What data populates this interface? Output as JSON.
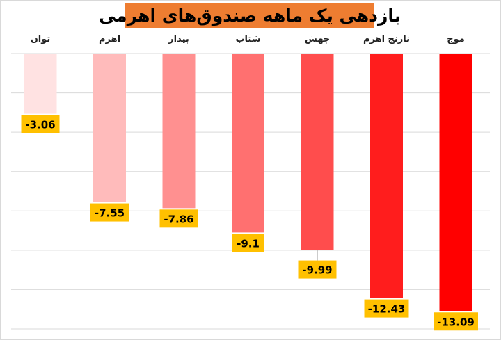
{
  "chart_data": {
    "type": "bar",
    "title": "بازدهی یک ماهه صندوق‌های اهرمی",
    "categories": [
      "موج",
      "نارنج اهرم",
      "جهش",
      "شتاب",
      "بیدار",
      "اهرم",
      "توان"
    ],
    "values": [
      -13.09,
      -12.43,
      -9.99,
      -9.1,
      -7.86,
      -7.55,
      -3.06
    ],
    "value_labels": [
      "-13.09",
      "-12.43",
      "-9.99",
      "-9.1",
      "-7.86",
      "-7.55",
      "-3.06"
    ],
    "bar_colors": [
      "#ff0000",
      "#ff1d1d",
      "#ff4d4d",
      "#ff7070",
      "#ff9090",
      "#ffbbbb",
      "#ffe2e2"
    ],
    "ylim": [
      -14,
      0
    ],
    "grid": true,
    "legend": "none",
    "label_box_color": "#ffc000",
    "title_box_color": "#ee7d31"
  }
}
